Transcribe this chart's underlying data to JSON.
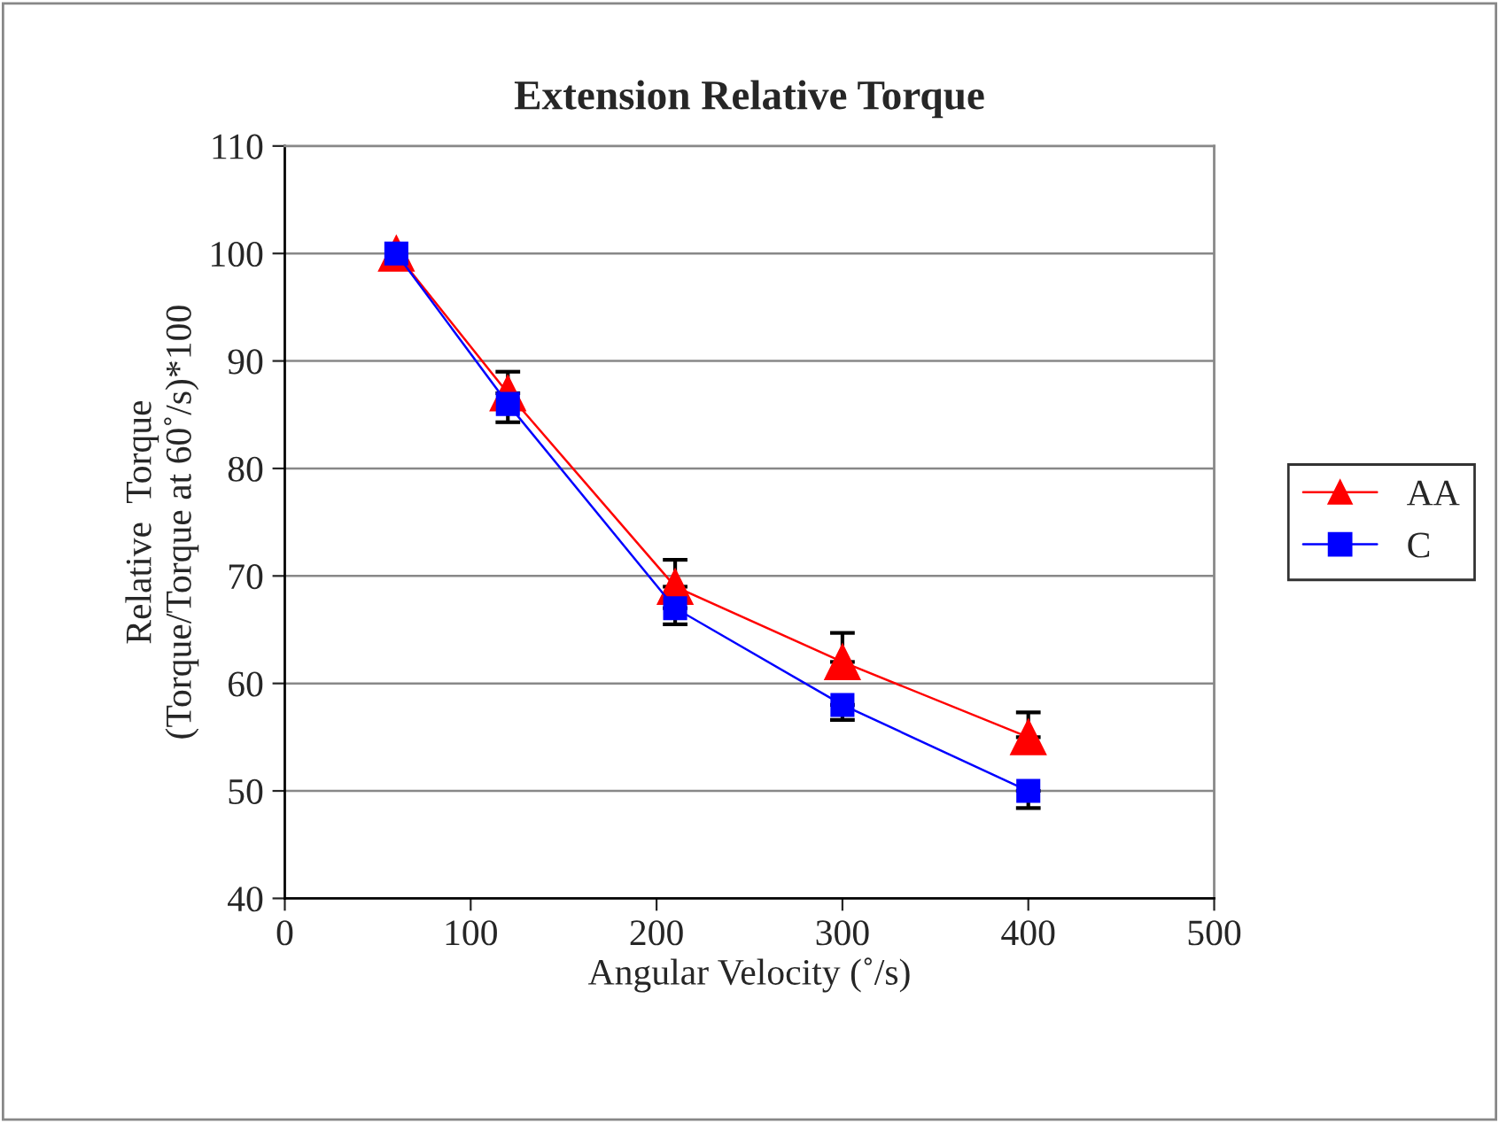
{
  "chart_data": {
    "type": "line",
    "title": "Extension Relative Torque",
    "xlabel": "Angular Velocity (˚/s)",
    "ylabel": "Relative  Torque\n(Torque/Torque at 60˚/s)*100",
    "x": [
      60,
      120,
      210,
      300,
      400
    ],
    "series": [
      {
        "name": "AA",
        "color": "#ff0000",
        "marker": "triangle",
        "values": [
          100,
          87,
          69,
          62,
          55
        ],
        "errors": [
          null,
          [
            87,
            89
          ],
          [
            69,
            71.5
          ],
          [
            62,
            64.7
          ],
          [
            55,
            57.3
          ]
        ]
      },
      {
        "name": "C",
        "color": "#0000ff",
        "marker": "square",
        "values": [
          100,
          86,
          67,
          58,
          50
        ],
        "errors": [
          null,
          [
            84.3,
            86
          ],
          [
            65.5,
            67
          ],
          [
            56.6,
            58
          ],
          [
            48.4,
            50
          ]
        ]
      }
    ],
    "xlim": [
      0,
      500
    ],
    "xticks": [
      0,
      100,
      200,
      300,
      400,
      500
    ],
    "ylim": [
      40,
      110
    ],
    "yticks": [
      40,
      50,
      60,
      70,
      80,
      90,
      100,
      110
    ],
    "grid": "y",
    "legend": "right",
    "line_style": "solid"
  }
}
